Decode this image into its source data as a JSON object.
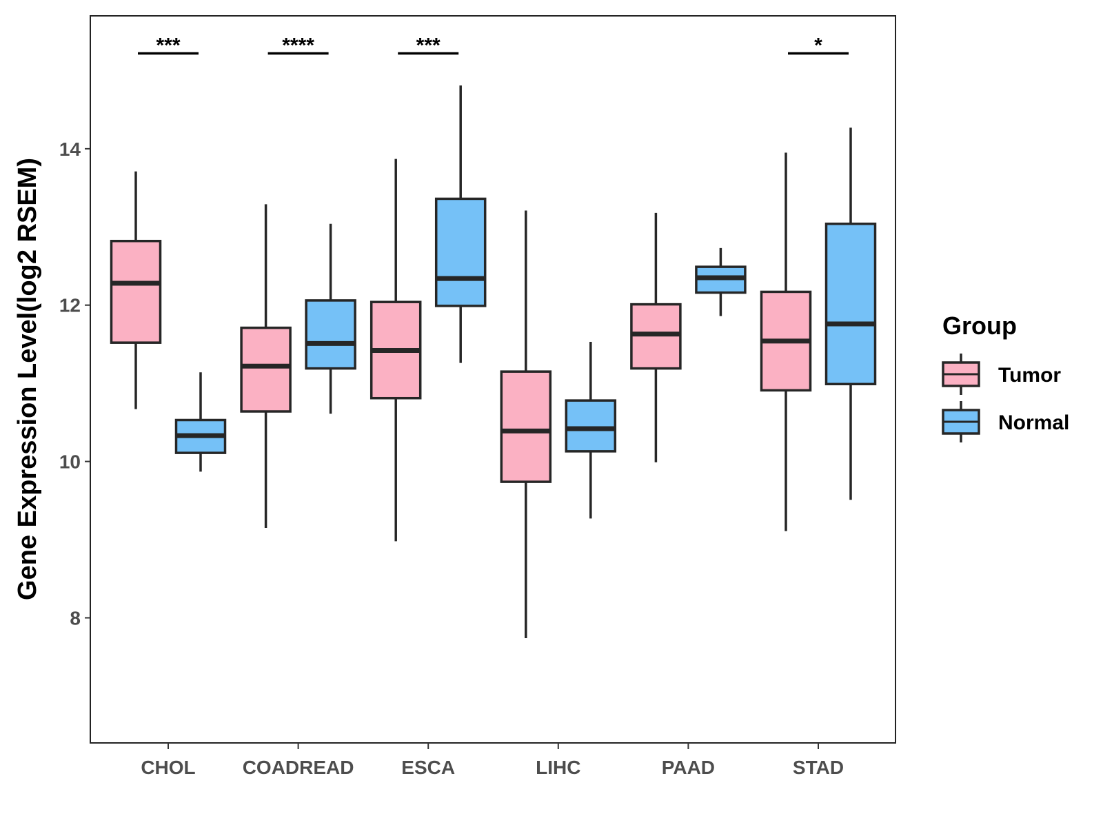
{
  "chart_data": {
    "type": "boxplot",
    "title": "",
    "xlabel": "",
    "ylabel": "Gene Expression Level(log2 RSEM)",
    "ylim": [
      6.4,
      15.7
    ],
    "yticks": [
      8,
      10,
      12,
      14
    ],
    "categories": [
      "CHOL",
      "COADREAD",
      "ESCA",
      "LIHC",
      "PAAD",
      "STAD"
    ],
    "series": [
      {
        "name": "Tumor",
        "color": "#FBB1C3",
        "boxes": [
          {
            "whisker_low": 10.67,
            "q1": 11.52,
            "median": 12.28,
            "q3": 12.82,
            "whisker_high": 13.71
          },
          {
            "whisker_low": 9.15,
            "q1": 10.64,
            "median": 11.22,
            "q3": 11.71,
            "whisker_high": 13.29
          },
          {
            "whisker_low": 8.98,
            "q1": 10.81,
            "median": 11.42,
            "q3": 12.04,
            "whisker_high": 13.87
          },
          {
            "whisker_low": 7.74,
            "q1": 9.74,
            "median": 10.39,
            "q3": 11.15,
            "whisker_high": 13.21
          },
          {
            "whisker_low": 9.99,
            "q1": 11.19,
            "median": 11.63,
            "q3": 12.01,
            "whisker_high": 13.18
          },
          {
            "whisker_low": 9.11,
            "q1": 10.91,
            "median": 11.54,
            "q3": 12.17,
            "whisker_high": 13.95
          }
        ]
      },
      {
        "name": "Normal",
        "color": "#75C1F7",
        "boxes": [
          {
            "whisker_low": 9.87,
            "q1": 10.11,
            "median": 10.33,
            "q3": 10.53,
            "whisker_high": 11.14
          },
          {
            "whisker_low": 10.61,
            "q1": 11.19,
            "median": 11.51,
            "q3": 12.06,
            "whisker_high": 13.04
          },
          {
            "whisker_low": 11.26,
            "q1": 11.99,
            "median": 12.34,
            "q3": 13.36,
            "whisker_high": 14.81
          },
          {
            "whisker_low": 9.27,
            "q1": 10.13,
            "median": 10.42,
            "q3": 10.78,
            "whisker_high": 11.53
          },
          {
            "whisker_low": 11.86,
            "q1": 12.16,
            "median": 12.35,
            "q3": 12.49,
            "whisker_high": 12.73
          },
          {
            "whisker_low": 9.51,
            "q1": 10.99,
            "median": 11.76,
            "q3": 13.04,
            "whisker_high": 14.27
          }
        ]
      }
    ],
    "significance": [
      {
        "category": "CHOL",
        "label": "***"
      },
      {
        "category": "COADREAD",
        "label": "****"
      },
      {
        "category": "ESCA",
        "label": "***"
      },
      {
        "category": "STAD",
        "label": "*"
      }
    ],
    "significance_level": 15.22,
    "legend": {
      "title": "Group",
      "position": "right",
      "items": [
        {
          "label": "Tumor",
          "color": "#FBB1C3"
        },
        {
          "label": "Normal",
          "color": "#75C1F7"
        }
      ]
    },
    "grid": false
  }
}
